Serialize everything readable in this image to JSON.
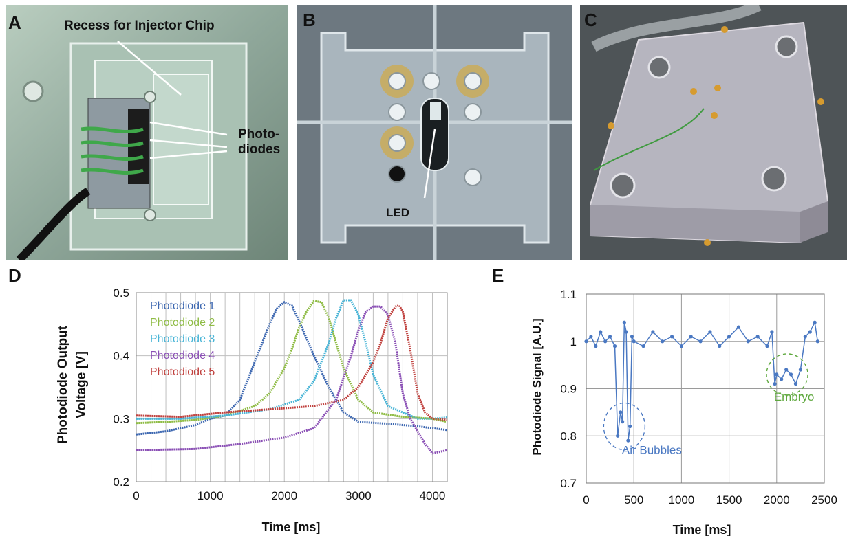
{
  "figure": {
    "panels": {
      "a": {
        "letter": "A",
        "callouts": {
          "recess": "Recess for Injector Chip",
          "photodiodes_line1": "Photo-",
          "photodiodes_line2": "diodes"
        }
      },
      "b": {
        "letter": "B",
        "callouts": {
          "led": "LED"
        }
      },
      "c": {
        "letter": "C"
      },
      "d": {
        "letter": "D"
      },
      "e": {
        "letter": "E"
      }
    }
  },
  "chart_data": [
    {
      "panel": "D",
      "type": "line",
      "xlabel": "Time [ms]",
      "ylabel_lines": [
        "Photodiode Output",
        "Voltage [V]"
      ],
      "xlim": [
        0,
        4200
      ],
      "ylim": [
        0.2,
        0.5
      ],
      "xticks": [
        0,
        1000,
        2000,
        3000,
        4000
      ],
      "yticks": [
        0.2,
        0.3,
        0.4,
        0.5
      ],
      "ytick_labels": [
        "0.2",
        "0.3",
        "0.4",
        "0.5"
      ],
      "grid": true,
      "legend_position": "top-left",
      "series": [
        {
          "name": "Photodiode 1",
          "color": "#3b66b0",
          "x": [
            0,
            400,
            800,
            1000,
            1200,
            1400,
            1600,
            1800,
            1900,
            2000,
            2100,
            2200,
            2400,
            2600,
            2800,
            3000,
            3400,
            3800,
            4200
          ],
          "y": [
            0.275,
            0.28,
            0.29,
            0.3,
            0.305,
            0.33,
            0.39,
            0.45,
            0.475,
            0.485,
            0.48,
            0.455,
            0.4,
            0.35,
            0.31,
            0.295,
            0.292,
            0.288,
            0.282
          ]
        },
        {
          "name": "Photodiode 2",
          "color": "#8fbc45",
          "x": [
            0,
            400,
            800,
            1200,
            1600,
            1800,
            2000,
            2100,
            2200,
            2300,
            2400,
            2500,
            2600,
            2800,
            3000,
            3200,
            3600,
            4000,
            4200
          ],
          "y": [
            0.293,
            0.295,
            0.298,
            0.305,
            0.32,
            0.34,
            0.38,
            0.41,
            0.445,
            0.47,
            0.487,
            0.485,
            0.46,
            0.38,
            0.33,
            0.31,
            0.303,
            0.3,
            0.295
          ]
        },
        {
          "name": "Photodiode 3",
          "color": "#47b4d6",
          "x": [
            0,
            600,
            1200,
            1800,
            2200,
            2400,
            2600,
            2700,
            2800,
            2900,
            3000,
            3100,
            3200,
            3400,
            3600,
            3800,
            4000,
            4200
          ],
          "y": [
            0.3,
            0.3,
            0.305,
            0.315,
            0.33,
            0.36,
            0.42,
            0.46,
            0.488,
            0.488,
            0.465,
            0.42,
            0.37,
            0.32,
            0.31,
            0.3,
            0.3,
            0.302
          ]
        },
        {
          "name": "Photodiode 4",
          "color": "#8a4fb5",
          "x": [
            0,
            800,
            1400,
            2000,
            2400,
            2700,
            2900,
            3000,
            3100,
            3200,
            3300,
            3400,
            3500,
            3600,
            3700,
            3800,
            3900,
            4000,
            4200
          ],
          "y": [
            0.25,
            0.252,
            0.26,
            0.27,
            0.285,
            0.33,
            0.4,
            0.44,
            0.47,
            0.478,
            0.478,
            0.465,
            0.42,
            0.34,
            0.3,
            0.28,
            0.26,
            0.245,
            0.25
          ]
        },
        {
          "name": "Photodiode 5",
          "color": "#c0413e",
          "x": [
            0,
            600,
            1200,
            1800,
            2400,
            2800,
            3000,
            3200,
            3300,
            3400,
            3500,
            3550,
            3600,
            3700,
            3800,
            3900,
            4000,
            4200
          ],
          "y": [
            0.305,
            0.303,
            0.31,
            0.315,
            0.32,
            0.33,
            0.35,
            0.39,
            0.42,
            0.46,
            0.478,
            0.48,
            0.47,
            0.41,
            0.34,
            0.31,
            0.3,
            0.298
          ]
        }
      ]
    },
    {
      "panel": "E",
      "type": "scatter",
      "xlabel": "Time [ms]",
      "ylabel": "Photodiode  Signal  [A.U.]",
      "xlim": [
        0,
        2500
      ],
      "ylim": [
        0.7,
        1.1
      ],
      "xticks": [
        0,
        500,
        1000,
        1500,
        2000,
        2500
      ],
      "yticks": [
        0.7,
        0.8,
        0.9,
        1.0,
        1.1
      ],
      "ytick_labels": [
        "0.7",
        "0.8",
        "0.9",
        "1",
        "1.1"
      ],
      "grid": true,
      "color": "#4a78c2",
      "series": [
        {
          "x": [
            0,
            50,
            100,
            150,
            200,
            250,
            300,
            330,
            360,
            380,
            400,
            420,
            440,
            460,
            480,
            500,
            600,
            700,
            800,
            900,
            1000,
            1100,
            1200,
            1300,
            1400,
            1500,
            1600,
            1700,
            1800,
            1900,
            1950,
            1980,
            2000,
            2050,
            2100,
            2150,
            2200,
            2250,
            2300,
            2350,
            2400,
            2430
          ],
          "y": [
            1.0,
            1.01,
            0.99,
            1.02,
            1.0,
            1.01,
            0.99,
            0.8,
            0.85,
            0.83,
            1.04,
            1.02,
            0.79,
            0.82,
            1.01,
            1.0,
            0.99,
            1.02,
            1.0,
            1.01,
            0.99,
            1.01,
            1.0,
            1.02,
            0.99,
            1.01,
            1.03,
            1.0,
            1.01,
            0.99,
            1.02,
            0.91,
            0.93,
            0.92,
            0.94,
            0.93,
            0.91,
            0.94,
            1.01,
            1.02,
            1.04,
            1.0
          ]
        }
      ],
      "annotations": [
        {
          "text": "Air Bubbles",
          "color": "#4a78c2",
          "x": 400,
          "y": 0.82
        },
        {
          "text": "Embryo",
          "color": "#5fa83e",
          "x": 2110,
          "y": 0.93
        }
      ]
    }
  ]
}
